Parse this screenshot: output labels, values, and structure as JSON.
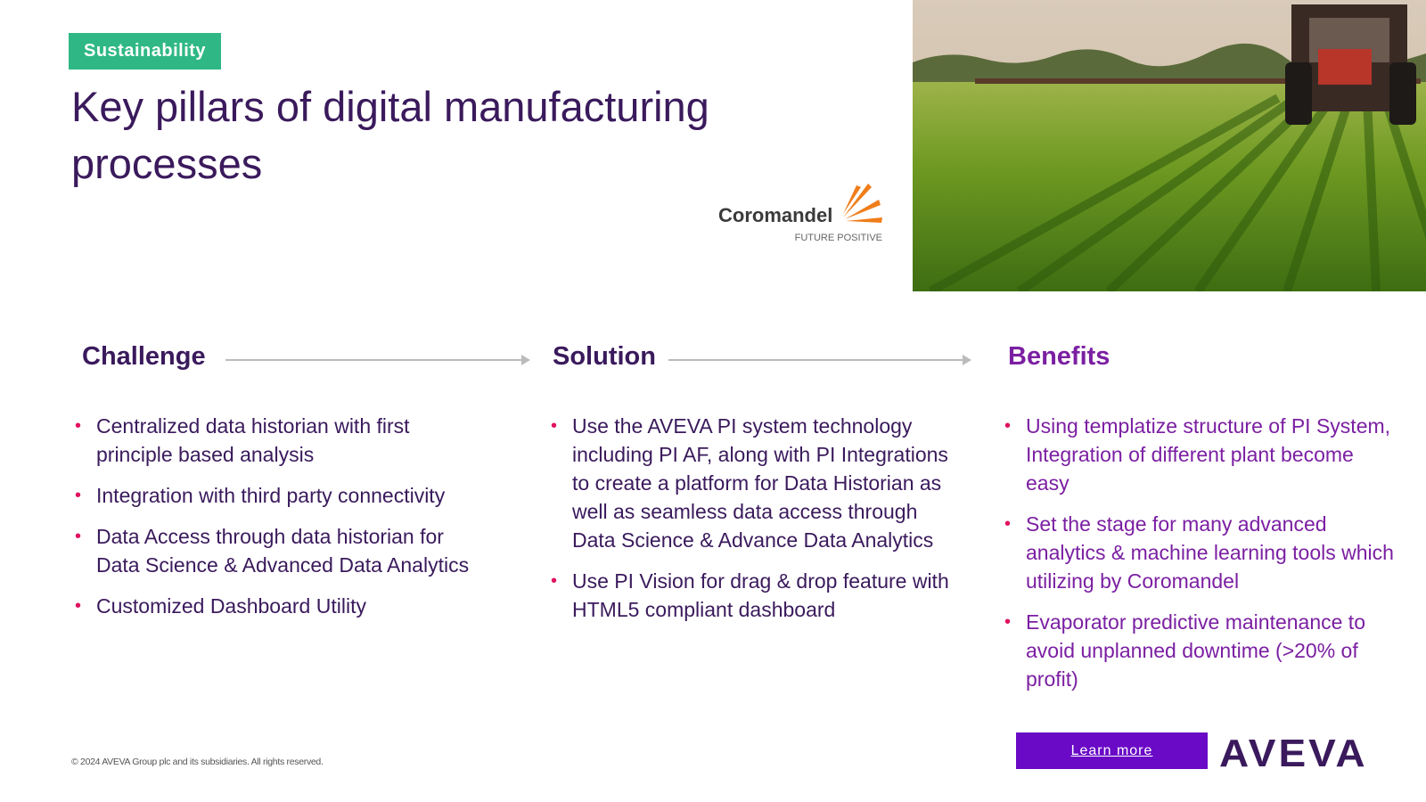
{
  "tag": "Sustainability",
  "header": {
    "title": "Key pillars of digital manufacturing processes"
  },
  "logo": {
    "name": "Coromandel",
    "tagline": "FUTURE POSITIVE"
  },
  "columns": [
    {
      "heading": "Challenge",
      "items": [
        "Centralized data historian with first principle based analysis",
        "Integration with third party connectivity",
        "Data Access through data historian for Data Science & Advanced Data Analytics",
        "Customized Dashboard Utility"
      ]
    },
    {
      "heading": "Solution",
      "items": [
        "Use the AVEVA PI system technology including PI AF, along with PI Integrations to create a platform for Data Historian as well as seamless data access through Data Science & Advance Data Analytics",
        "Use PI Vision for drag & drop feature with HTML5 compliant dashboard"
      ]
    },
    {
      "heading": "Benefits",
      "items": [
        "Using templatize structure of PI System, Integration of different plant become easy",
        "Set the stage for many advanced analytics & machine learning tools which utilizing by Coromandel",
        "Evaporator predictive maintenance to avoid unplanned downtime (>20% of profit)"
      ]
    }
  ],
  "footer": {
    "copyright": "© 2024 AVEVA Group plc and its subsidiaries. All rights reserved.",
    "button": "Learn more",
    "brand": "AVEVA"
  }
}
